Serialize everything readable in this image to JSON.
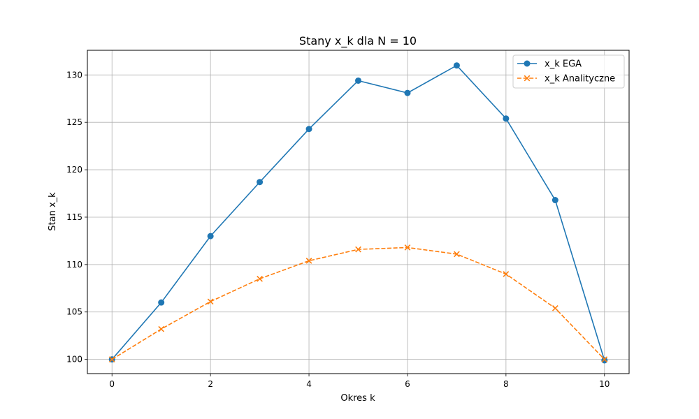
{
  "chart_data": {
    "type": "line",
    "title": "Stany x_k dla N = 10",
    "xlabel": "Okres k",
    "ylabel": "Stan x_k",
    "xlim": [
      -0.5,
      10.5
    ],
    "ylim": [
      98.5,
      132.6
    ],
    "xticks": [
      0,
      2,
      4,
      6,
      8,
      10
    ],
    "yticks": [
      100,
      105,
      110,
      115,
      120,
      125,
      130
    ],
    "grid": true,
    "legend_position": "top-right",
    "x": [
      0,
      1,
      2,
      3,
      4,
      5,
      6,
      7,
      8,
      9,
      10
    ],
    "series": [
      {
        "name": "x_k EGA",
        "color": "#1f77b4",
        "line_style": "solid",
        "marker": "circle",
        "values": [
          100.0,
          106.0,
          113.0,
          118.7,
          124.3,
          129.4,
          128.1,
          131.0,
          125.4,
          116.8,
          99.9
        ]
      },
      {
        "name": "x_k Analityczne",
        "color": "#ff7f0e",
        "line_style": "dashed",
        "marker": "x",
        "values": [
          100.0,
          103.2,
          106.1,
          108.5,
          110.4,
          111.6,
          111.8,
          111.1,
          109.0,
          105.4,
          100.0
        ]
      }
    ]
  }
}
